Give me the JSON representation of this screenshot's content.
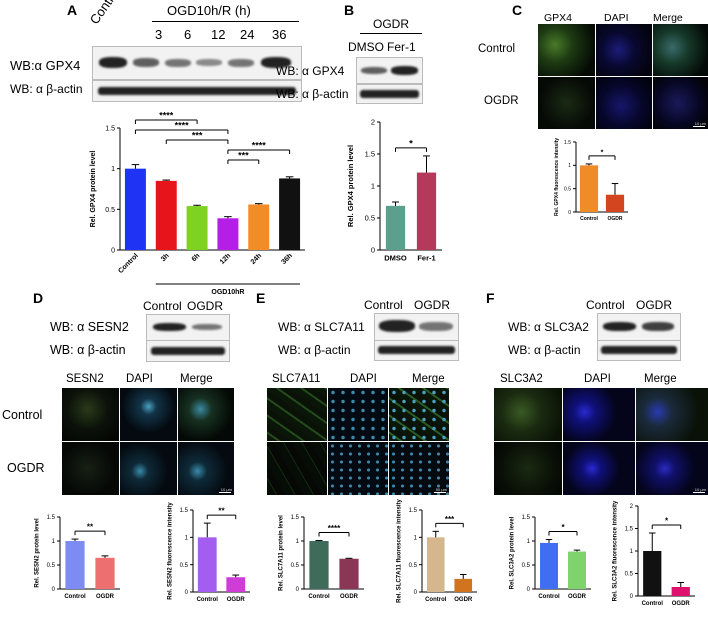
{
  "panels": {
    "A": {
      "label": "A",
      "lanes": [
        "Control",
        "3",
        "6",
        "12",
        "24",
        "36"
      ],
      "group_label": "OGD10h/R (h)",
      "wb_target": "WB:α GPX4",
      "wb_loading": "WB: α β-actin"
    },
    "B": {
      "label": "B",
      "group_label": "OGDR",
      "lanes": [
        "DMSO",
        "Fer-1"
      ],
      "wb_target": "WB: α GPX4",
      "wb_loading": "WB: α β-actin"
    },
    "C": {
      "label": "C",
      "columns": [
        "GPX4",
        "DAPI",
        "Merge"
      ],
      "rows": [
        "Control",
        "OGDR"
      ],
      "scale": "10 μm"
    },
    "D": {
      "label": "D",
      "lanes": [
        "Control",
        "OGDR"
      ],
      "wb_target": "WB: α SESN2",
      "wb_loading": "WB: α β-actin",
      "columns": [
        "SESN2",
        "DAPI",
        "Merge"
      ],
      "rows": [
        "Control",
        "OGDR"
      ],
      "scale": "10 μm"
    },
    "E": {
      "label": "E",
      "lanes": [
        "Control",
        "OGDR"
      ],
      "wb_target": "WB: α SLC7A11",
      "wb_loading": "WB: α β-actin",
      "columns": [
        "SLC7A11",
        "DAPI",
        "Merge"
      ],
      "scale": "50 μm"
    },
    "F": {
      "label": "F",
      "lanes": [
        "Control",
        "OGDR"
      ],
      "wb_target": "WB: α SLC3A2",
      "wb_loading": "WB: α β-actin",
      "columns": [
        "SLC3A2",
        "DAPI",
        "Merge"
      ],
      "scale": "10 μm"
    }
  },
  "chart_data": [
    {
      "id": "A",
      "type": "bar",
      "categories": [
        "Control",
        "3h",
        "6h",
        "12h",
        "24h",
        "36h"
      ],
      "values": [
        1.0,
        0.85,
        0.54,
        0.39,
        0.56,
        0.88
      ],
      "errors": [
        0.05,
        0.01,
        0.01,
        0.02,
        0.01,
        0.02
      ],
      "colors": [
        "#1f33f5",
        "#e8141b",
        "#7ed321",
        "#b41ee6",
        "#f28c28",
        "#111111"
      ],
      "xlabel": "",
      "xgroup": "OGD10hR",
      "ylabel": "Rel. GPX4 protein level",
      "ylim": [
        0,
        1.5
      ],
      "yticks": [
        0,
        0.5,
        1.0,
        1.5
      ],
      "significance": [
        {
          "from": 0,
          "to": 2,
          "label": "****"
        },
        {
          "from": 0,
          "to": 3,
          "label": "****"
        },
        {
          "from": 1,
          "to": 3,
          "label": "***"
        },
        {
          "from": 3,
          "to": 5,
          "label": "****"
        },
        {
          "from": 3,
          "to": 4,
          "label": "***"
        }
      ]
    },
    {
      "id": "B",
      "type": "bar",
      "categories": [
        "DMSO",
        "Fer-1"
      ],
      "values": [
        0.69,
        1.21
      ],
      "errors": [
        0.06,
        0.26
      ],
      "colors": [
        "#5aa08c",
        "#b33a5a"
      ],
      "ylabel": "Rel. GPX4 protein level",
      "ylim": [
        0,
        2.0
      ],
      "yticks": [
        0,
        0.5,
        1.0,
        1.5,
        2.0
      ],
      "significance": [
        {
          "from": 0,
          "to": 1,
          "label": "*"
        }
      ]
    },
    {
      "id": "C",
      "type": "bar",
      "categories": [
        "Control",
        "OGDR"
      ],
      "values": [
        1.0,
        0.37
      ],
      "errors": [
        0.03,
        0.24
      ],
      "colors": [
        "#f08c28",
        "#d2451e"
      ],
      "ylabel": "Rel. GPX4 fluorescence intensity",
      "ylim": [
        0,
        1.5
      ],
      "yticks": [
        0,
        0.5,
        1.0,
        1.5
      ],
      "significance": [
        {
          "from": 0,
          "to": 1,
          "label": "*"
        }
      ]
    },
    {
      "id": "D1",
      "type": "bar",
      "categories": [
        "Control",
        "OGDR"
      ],
      "values": [
        1.0,
        0.65
      ],
      "errors": [
        0.04,
        0.04
      ],
      "colors": [
        "#7c8cf2",
        "#ee6f6f"
      ],
      "ylabel": "Rel. SESN2 protein level",
      "ylim": [
        0,
        1.5
      ],
      "yticks": [
        0,
        0.5,
        1.0,
        1.5
      ],
      "significance": [
        {
          "from": 0,
          "to": 1,
          "label": "**"
        }
      ]
    },
    {
      "id": "D2",
      "type": "bar",
      "categories": [
        "Control",
        "OGDR"
      ],
      "values": [
        1.0,
        0.27
      ],
      "errors": [
        0.26,
        0.04
      ],
      "colors": [
        "#a35ef0",
        "#d03cd6"
      ],
      "ylabel": "Rel. SESN2 fluorescence intensity",
      "ylim": [
        0,
        1.5
      ],
      "yticks": [
        0,
        0.5,
        1.0,
        1.5
      ],
      "significance": [
        {
          "from": 0,
          "to": 1,
          "label": "**"
        }
      ]
    },
    {
      "id": "E1",
      "type": "bar",
      "categories": [
        "Control",
        "OGDR"
      ],
      "values": [
        1.0,
        0.63
      ],
      "errors": [
        0.01,
        0.01
      ],
      "colors": [
        "#3f6b5a",
        "#8c3656"
      ],
      "ylabel": "Rel. SLC7A11 protein level",
      "ylim": [
        0,
        1.5
      ],
      "yticks": [
        0,
        0.5,
        1.0,
        1.5
      ],
      "significance": [
        {
          "from": 0,
          "to": 1,
          "label": "****"
        }
      ]
    },
    {
      "id": "E2",
      "type": "bar",
      "categories": [
        "Control",
        "OGDR"
      ],
      "values": [
        1.0,
        0.24
      ],
      "errors": [
        0.11,
        0.08
      ],
      "colors": [
        "#d6b68c",
        "#d2741e"
      ],
      "ylabel": "Rel. SLC7A11 fluorescence intensity",
      "ylim": [
        0,
        1.5
      ],
      "yticks": [
        0,
        0.5,
        1.0,
        1.5
      ],
      "significance": [
        {
          "from": 0,
          "to": 1,
          "label": "***"
        }
      ]
    },
    {
      "id": "F1",
      "type": "bar",
      "categories": [
        "Control",
        "OGDR"
      ],
      "values": [
        0.96,
        0.78
      ],
      "errors": [
        0.07,
        0.03
      ],
      "colors": [
        "#3f6ef0",
        "#7ed36b"
      ],
      "ylabel": "Rel. SLC3A2 protein level",
      "ylim": [
        0,
        1.5
      ],
      "yticks": [
        0,
        0.5,
        1.0,
        1.5
      ],
      "significance": [
        {
          "from": 0,
          "to": 1,
          "label": "*"
        }
      ]
    },
    {
      "id": "F2",
      "type": "bar",
      "categories": [
        "Control",
        "OGDR"
      ],
      "values": [
        1.0,
        0.2
      ],
      "errors": [
        0.4,
        0.1
      ],
      "colors": [
        "#111111",
        "#e0106e"
      ],
      "ylabel": "Rel. SLC3A2 fluorescence intensity",
      "ylim": [
        0,
        2.0
      ],
      "yticks": [
        0,
        0.5,
        1.0,
        1.5,
        2.0
      ],
      "significance": [
        {
          "from": 0,
          "to": 1,
          "label": "*"
        }
      ]
    }
  ]
}
